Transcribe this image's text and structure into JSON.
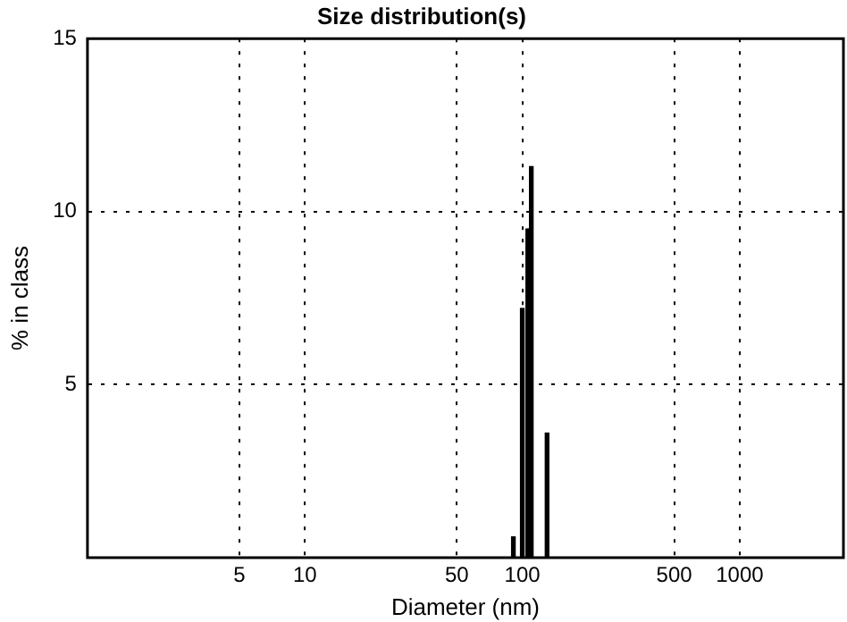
{
  "chart_data": {
    "type": "bar",
    "title": "Size distribution(s)",
    "xlabel": "Diameter (nm)",
    "ylabel": "% in class",
    "x": [
      91,
      100,
      106,
      110,
      130
    ],
    "values": [
      0.6,
      7.2,
      9.5,
      11.3,
      3.6
    ],
    "color": "#000000",
    "log": "x",
    "xlim": [
      1,
      3000
    ],
    "xticks": [
      5,
      10,
      50,
      100,
      500,
      1000
    ],
    "ylim": [
      0,
      15
    ],
    "yticks": [
      5,
      10,
      15
    ],
    "grid": true,
    "legend": false
  }
}
